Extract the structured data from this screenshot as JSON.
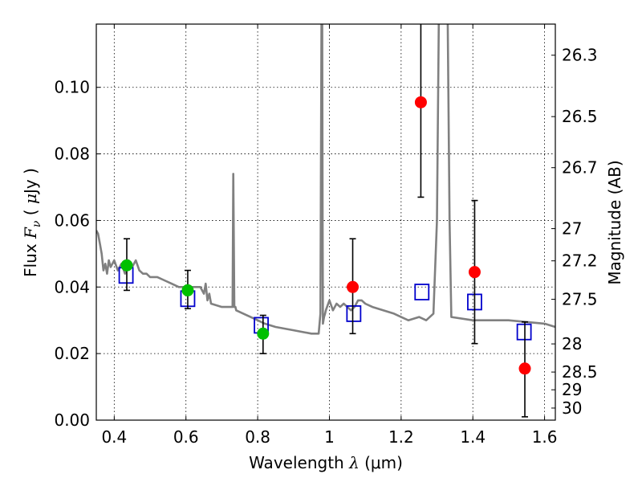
{
  "chart_data": {
    "type": "scatter",
    "xlabel": "Wavelength  λ (μm)",
    "xlabel_parts": {
      "prefix": "Wavelength  ",
      "lambda": "λ",
      "unit": " (μm)"
    },
    "ylabel": "Flux  F_ν  ( μJy )",
    "ylabel_parts": {
      "prefix": "Flux  ",
      "F": "F",
      "nu": "ν",
      "mid": "  (  ",
      "mu": "μ",
      "suffix": "Jy )"
    },
    "y2label": "Magnitude (AB)",
    "xlim": [
      0.35,
      1.63
    ],
    "ylim": [
      0.0,
      0.119
    ],
    "grid": true,
    "x_ticks": [
      0.4,
      0.6,
      0.8,
      1.0,
      1.2,
      1.4,
      1.6
    ],
    "x_tick_labels": [
      "0.4",
      "0.6",
      "0.8",
      "1",
      "1.2",
      "1.4",
      "1.6"
    ],
    "y_ticks": [
      0.0,
      0.02,
      0.04,
      0.06,
      0.08,
      0.1
    ],
    "y_tick_labels": [
      "0.00",
      "0.02",
      "0.04",
      "0.06",
      "0.08",
      "0.10"
    ],
    "y2_ticks": [
      26.3,
      26.5,
      26.7,
      27,
      27.2,
      27.5,
      28,
      28.5,
      29,
      30
    ],
    "y2_tick_labels": [
      "26.3",
      "26.5",
      "26.7",
      "27",
      "27.2",
      "27.5",
      "28",
      "28.5",
      "29",
      "30"
    ],
    "colors": {
      "model": "#808080",
      "green": "#00c000",
      "red": "#ff0000",
      "box": "#0000cc",
      "error": "#000000"
    },
    "model_spectrum": {
      "name": "SED model",
      "x": [
        0.35,
        0.355,
        0.36,
        0.365,
        0.37,
        0.375,
        0.38,
        0.385,
        0.39,
        0.4,
        0.41,
        0.42,
        0.43,
        0.44,
        0.45,
        0.46,
        0.47,
        0.48,
        0.49,
        0.5,
        0.52,
        0.54,
        0.56,
        0.58,
        0.6,
        0.62,
        0.64,
        0.65,
        0.655,
        0.66,
        0.665,
        0.67,
        0.7,
        0.73,
        0.732,
        0.735,
        0.738,
        0.74,
        0.76,
        0.78,
        0.8,
        0.82,
        0.85,
        0.9,
        0.95,
        0.97,
        0.975,
        0.978,
        0.979,
        0.98,
        0.981,
        0.982,
        0.985,
        0.988,
        0.99,
        1.0,
        1.01,
        1.02,
        1.03,
        1.04,
        1.05,
        1.06,
        1.07,
        1.08,
        1.09,
        1.1,
        1.12,
        1.15,
        1.18,
        1.2,
        1.22,
        1.25,
        1.27,
        1.28,
        1.29,
        1.3,
        1.305,
        1.31,
        1.32,
        1.325,
        1.33,
        1.335,
        1.34,
        1.4,
        1.5,
        1.6,
        1.63
      ],
      "y": [
        0.057,
        0.056,
        0.053,
        0.05,
        0.045,
        0.047,
        0.044,
        0.048,
        0.046,
        0.048,
        0.045,
        0.047,
        0.044,
        0.048,
        0.046,
        0.048,
        0.045,
        0.044,
        0.044,
        0.043,
        0.043,
        0.042,
        0.041,
        0.04,
        0.04,
        0.04,
        0.04,
        0.038,
        0.041,
        0.036,
        0.038,
        0.035,
        0.034,
        0.034,
        0.074,
        0.034,
        0.034,
        0.033,
        0.032,
        0.031,
        0.03,
        0.029,
        0.028,
        0.027,
        0.026,
        0.026,
        0.032,
        0.12,
        0.12,
        0.12,
        0.06,
        0.029,
        0.031,
        0.032,
        0.033,
        0.036,
        0.033,
        0.035,
        0.034,
        0.035,
        0.034,
        0.033,
        0.034,
        0.036,
        0.036,
        0.035,
        0.034,
        0.033,
        0.032,
        0.031,
        0.03,
        0.031,
        0.03,
        0.031,
        0.032,
        0.06,
        0.12,
        0.12,
        0.12,
        0.12,
        0.12,
        0.06,
        0.031,
        0.03,
        0.03,
        0.029,
        0.028
      ]
    },
    "series": [
      {
        "name": "green detections",
        "marker": "circle",
        "x": [
          0.435,
          0.605,
          0.815
        ],
        "y": [
          0.0465,
          0.039,
          0.026
        ],
        "err_low": [
          0.0075,
          0.0055,
          0.006
        ],
        "err_high": [
          0.008,
          0.006,
          0.0055
        ]
      },
      {
        "name": "red detections",
        "marker": "circle",
        "x": [
          1.065,
          1.255,
          1.405,
          1.545
        ],
        "y": [
          0.04,
          0.0955,
          0.0445,
          0.0155
        ],
        "err_low": [
          0.014,
          0.0285,
          0.0215,
          0.0145
        ],
        "err_high": [
          0.0145,
          0.025,
          0.0215,
          0.014
        ]
      },
      {
        "name": "model photometry",
        "marker": "open-square",
        "x": [
          0.433,
          0.605,
          0.81,
          1.068,
          1.258,
          1.405,
          1.543
        ],
        "y": [
          0.0435,
          0.0365,
          0.0285,
          0.032,
          0.0385,
          0.0355,
          0.0265
        ]
      }
    ]
  }
}
